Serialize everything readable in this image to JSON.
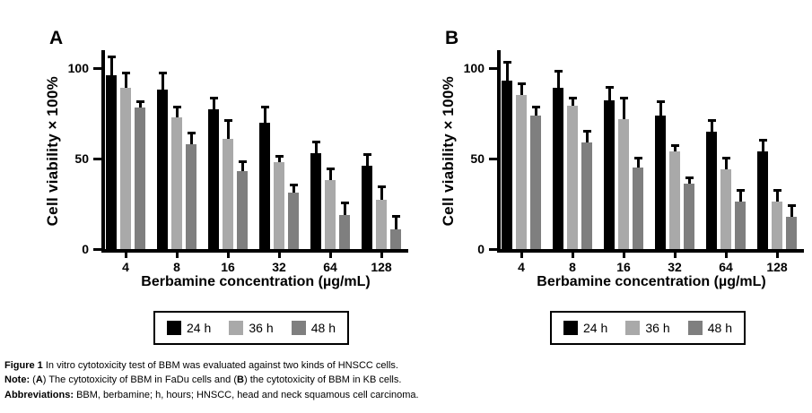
{
  "legend": {
    "items": [
      {
        "label": "24 h",
        "color": "#000000"
      },
      {
        "label": "36 h",
        "color": "#a9a9a9"
      },
      {
        "label": "48 h",
        "color": "#7f7f7f"
      }
    ]
  },
  "caption": {
    "lines": [
      {
        "segments": [
          {
            "t": "Figure 1",
            "b": true
          },
          {
            "t": " In vitro cytotoxicity test of BBM was evaluated against two kinds of HNSCC cells.",
            "b": false
          }
        ]
      },
      {
        "segments": [
          {
            "t": "Note:",
            "b": true
          },
          {
            "t": " (",
            "b": false
          },
          {
            "t": "A",
            "b": true
          },
          {
            "t": ") The cytotoxicity of BBM in FaDu cells and (",
            "b": false
          },
          {
            "t": "B",
            "b": true
          },
          {
            "t": ") the cytotoxicity of BBM in KB cells.",
            "b": false
          }
        ]
      },
      {
        "segments": [
          {
            "t": "Abbreviations:",
            "b": true
          },
          {
            "t": " BBM, berbamine; h, hours; HNSCC, head and neck squamous cell carcinoma.",
            "b": false
          }
        ]
      }
    ]
  },
  "chart_data": [
    {
      "type": "bar",
      "panel_label": "A",
      "xlabel": "Berbamine concentration (µg/mL)",
      "ylabel": "Cell viability×100%",
      "ylim": [
        0,
        112
      ],
      "yticks": [
        0,
        50,
        100
      ],
      "grid": false,
      "legend_position": "bottom",
      "error_bars": "upper",
      "categories": [
        "4",
        "8",
        "16",
        "32",
        "64",
        "128"
      ],
      "series": [
        {
          "name": "24 h",
          "color": "#000000",
          "values": [
            96,
            88,
            77,
            70,
            53,
            46
          ],
          "errors": [
            11,
            10,
            7,
            9,
            7,
            7
          ]
        },
        {
          "name": "36 h",
          "color": "#a9a9a9",
          "values": [
            89,
            73,
            61,
            48,
            38,
            27
          ],
          "errors": [
            9,
            6,
            11,
            4,
            7,
            8
          ]
        },
        {
          "name": "48 h",
          "color": "#7f7f7f",
          "values": [
            78,
            58,
            43,
            31,
            19,
            11
          ],
          "errors": [
            4,
            7,
            6,
            5,
            7,
            8
          ]
        }
      ]
    },
    {
      "type": "bar",
      "panel_label": "B",
      "xlabel": "Berbamine concentration (µg/mL)",
      "ylabel": "Cell viability×100%",
      "ylim": [
        0,
        112
      ],
      "yticks": [
        0,
        50,
        100
      ],
      "grid": false,
      "legend_position": "bottom",
      "error_bars": "upper",
      "categories": [
        "4",
        "8",
        "16",
        "32",
        "64",
        "128"
      ],
      "series": [
        {
          "name": "24 h",
          "color": "#000000",
          "values": [
            93,
            89,
            82,
            74,
            65,
            54
          ],
          "errors": [
            11,
            10,
            8,
            8,
            7,
            7
          ]
        },
        {
          "name": "36 h",
          "color": "#a9a9a9",
          "values": [
            85,
            79,
            72,
            54,
            44,
            26
          ],
          "errors": [
            7,
            5,
            12,
            4,
            7,
            7
          ]
        },
        {
          "name": "48 h",
          "color": "#7f7f7f",
          "values": [
            74,
            59,
            45,
            36,
            26,
            18
          ],
          "errors": [
            5,
            7,
            6,
            4,
            7,
            7
          ]
        }
      ]
    }
  ]
}
